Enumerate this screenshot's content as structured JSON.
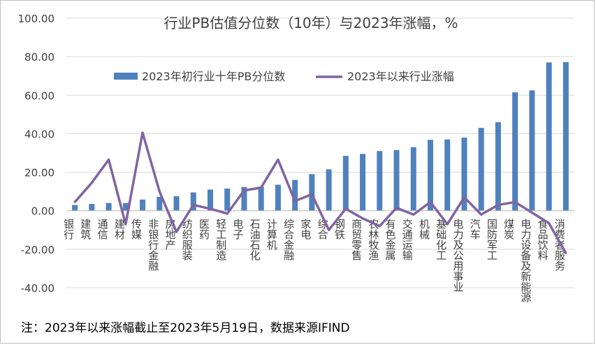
{
  "chart_data": {
    "type": "bar+line",
    "title": "行业PB估值分位数（10年）与2023年涨幅，%",
    "categories": [
      "银行",
      "建筑",
      "通信",
      "建材",
      "传媒",
      "非银行金融",
      "房地产",
      "纺织服装",
      "医药",
      "轻工制造",
      "电子",
      "石油石化",
      "计算机",
      "综合金融",
      "家电",
      "综合",
      "钢铁",
      "商贸零售",
      "农林牧渔",
      "有色金属",
      "交通运输",
      "机械",
      "基础化工",
      "电力及公用事业",
      "汽车",
      "国防军工",
      "煤炭",
      "电力设备及新能源",
      "食品饮料",
      "消费者服务"
    ],
    "series": [
      {
        "name": "2023年初行业十年PB分位数",
        "type": "bar",
        "color": "#4f81bd",
        "values": [
          3.0,
          3.5,
          4.0,
          4.0,
          5.8,
          7.2,
          7.5,
          9.5,
          11.0,
          11.5,
          12.3,
          12.5,
          13.5,
          16.0,
          19.0,
          21.5,
          28.5,
          29.5,
          31.0,
          31.5,
          33.0,
          36.8,
          37.0,
          38.0,
          43.0,
          46.0,
          61.5,
          62.5,
          77.0,
          77.2
        ]
      },
      {
        "name": "2023年以来行业涨幅",
        "type": "line",
        "color": "#8064a2",
        "values": [
          4.5,
          14.5,
          26.5,
          -7.0,
          40.5,
          10.0,
          -11.0,
          3.0,
          1.0,
          -1.5,
          10.5,
          12.0,
          26.5,
          5.0,
          8.5,
          -10.0,
          1.0,
          -4.0,
          -8.0,
          1.5,
          -2.0,
          4.5,
          -7.0,
          7.0,
          -2.0,
          3.0,
          4.5,
          -1.0,
          -6.5,
          -22.0
        ]
      }
    ],
    "ylim": [
      -40,
      100
    ],
    "yticks": [
      "100.00",
      "80.00",
      "60.00",
      "40.00",
      "20.00",
      "0.00",
      "-20.00",
      "-40.00"
    ],
    "legend_position": "top",
    "gridlines": true
  },
  "note": "注：2023年以来涨幅截止至2023年5月19日，数据来源IFIND"
}
